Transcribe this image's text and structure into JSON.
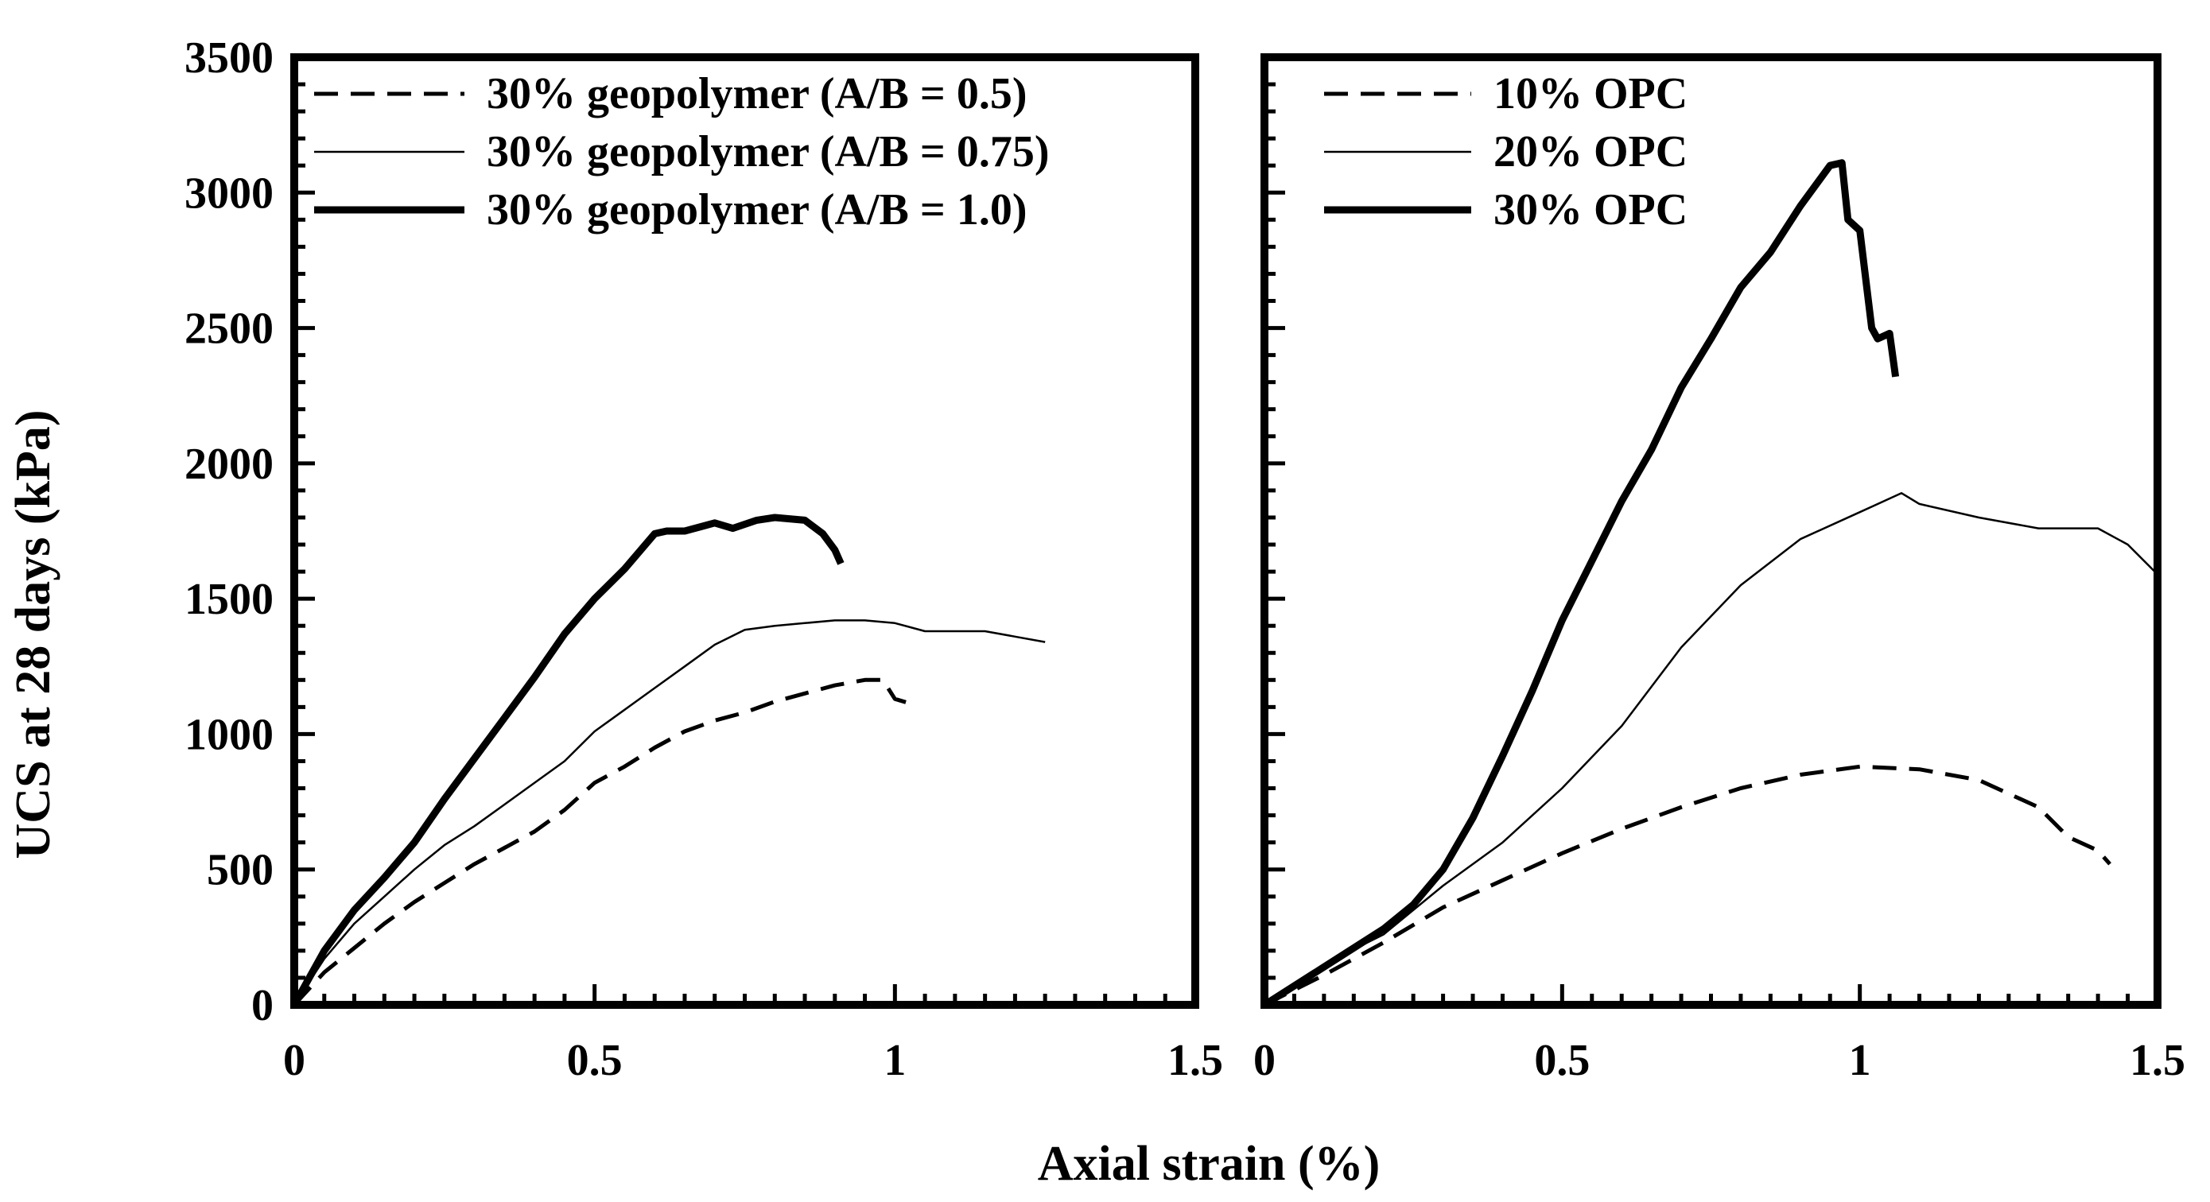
{
  "figure": {
    "ylabel": "UCS at 28 days (kPa)",
    "xlabel": "Axial strain (%)"
  },
  "chart_data": [
    {
      "type": "line",
      "title": "",
      "xlabel": "Axial strain (%)",
      "ylabel": "UCS at 28 days (kPa)",
      "xlim": [
        0,
        1.5
      ],
      "ylim": [
        0,
        3500
      ],
      "xticks": [
        0,
        0.5,
        1,
        1.5
      ],
      "xtick_labels": [
        "0",
        "0.5",
        "1",
        "1.5"
      ],
      "yticks": [
        0,
        500,
        1000,
        1500,
        2000,
        2500,
        3000,
        3500
      ],
      "ytick_labels": [
        "0",
        "500",
        "1000",
        "1500",
        "2000",
        "2500",
        "3000",
        "3500"
      ],
      "legend_position": "top-left",
      "series": [
        {
          "name": "30% geopolymer (A/B = 0.5)",
          "style": "dashed",
          "x": [
            0,
            0.05,
            0.1,
            0.15,
            0.2,
            0.25,
            0.3,
            0.35,
            0.4,
            0.45,
            0.5,
            0.55,
            0.6,
            0.65,
            0.7,
            0.75,
            0.8,
            0.85,
            0.9,
            0.95,
            0.98,
            1.0,
            1.03
          ],
          "y": [
            0,
            120,
            210,
            300,
            380,
            450,
            520,
            580,
            640,
            720,
            820,
            880,
            950,
            1010,
            1050,
            1080,
            1120,
            1150,
            1180,
            1200,
            1200,
            1130,
            1110
          ]
        },
        {
          "name": "30% geopolymer (A/B = 0.75)",
          "style": "thin",
          "x": [
            0,
            0.05,
            0.1,
            0.15,
            0.2,
            0.25,
            0.3,
            0.35,
            0.4,
            0.45,
            0.5,
            0.55,
            0.6,
            0.65,
            0.7,
            0.75,
            0.8,
            0.85,
            0.9,
            0.95,
            1.0,
            1.05,
            1.1,
            1.15,
            1.2,
            1.25
          ],
          "y": [
            0,
            170,
            300,
            400,
            500,
            590,
            660,
            740,
            820,
            900,
            1010,
            1090,
            1170,
            1250,
            1330,
            1385,
            1400,
            1410,
            1420,
            1420,
            1410,
            1380,
            1380,
            1380,
            1360,
            1340
          ]
        },
        {
          "name": "30% geopolymer (A/B = 1.0)",
          "style": "thick",
          "x": [
            0,
            0.05,
            0.1,
            0.15,
            0.2,
            0.25,
            0.3,
            0.35,
            0.4,
            0.45,
            0.5,
            0.55,
            0.6,
            0.62,
            0.65,
            0.7,
            0.73,
            0.77,
            0.8,
            0.85,
            0.88,
            0.9,
            0.91
          ],
          "y": [
            0,
            200,
            350,
            470,
            600,
            760,
            910,
            1060,
            1210,
            1370,
            1500,
            1610,
            1740,
            1750,
            1750,
            1780,
            1760,
            1790,
            1800,
            1790,
            1740,
            1680,
            1630
          ]
        }
      ]
    },
    {
      "type": "line",
      "title": "",
      "xlabel": "Axial strain (%)",
      "ylabel": "",
      "xlim": [
        0,
        1.5
      ],
      "ylim": [
        0,
        3500
      ],
      "xticks": [
        0,
        0.5,
        1,
        1.5
      ],
      "xtick_labels": [
        "0",
        "0.5",
        "1",
        "1.5"
      ],
      "yticks": [
        0,
        500,
        1000,
        1500,
        2000,
        2500,
        3000,
        3500
      ],
      "legend_position": "top-left",
      "series": [
        {
          "name": "10% OPC",
          "style": "dashed",
          "x": [
            0,
            0.1,
            0.2,
            0.3,
            0.4,
            0.5,
            0.6,
            0.7,
            0.8,
            0.9,
            1.0,
            1.1,
            1.2,
            1.3,
            1.35,
            1.4,
            1.42
          ],
          "y": [
            0,
            110,
            230,
            360,
            460,
            560,
            650,
            730,
            800,
            850,
            880,
            870,
            830,
            730,
            620,
            570,
            520
          ]
        },
        {
          "name": "20% OPC",
          "style": "thin",
          "x": [
            0,
            0.1,
            0.2,
            0.3,
            0.4,
            0.5,
            0.6,
            0.7,
            0.8,
            0.9,
            1.0,
            1.07,
            1.1,
            1.2,
            1.3,
            1.4,
            1.45,
            1.5
          ],
          "y": [
            0,
            150,
            260,
            440,
            600,
            800,
            1030,
            1320,
            1550,
            1720,
            1820,
            1890,
            1850,
            1800,
            1760,
            1760,
            1700,
            1590
          ]
        },
        {
          "name": "30% OPC",
          "style": "thick",
          "x": [
            0,
            0.1,
            0.2,
            0.25,
            0.3,
            0.35,
            0.4,
            0.45,
            0.5,
            0.55,
            0.6,
            0.65,
            0.7,
            0.75,
            0.8,
            0.85,
            0.9,
            0.95,
            0.97,
            0.98,
            1.0,
            1.02,
            1.03,
            1.05,
            1.06
          ],
          "y": [
            0,
            140,
            280,
            370,
            500,
            690,
            920,
            1160,
            1420,
            1640,
            1860,
            2050,
            2280,
            2460,
            2650,
            2780,
            2950,
            3100,
            3110,
            2900,
            2860,
            2500,
            2460,
            2480,
            2320
          ]
        }
      ]
    }
  ]
}
